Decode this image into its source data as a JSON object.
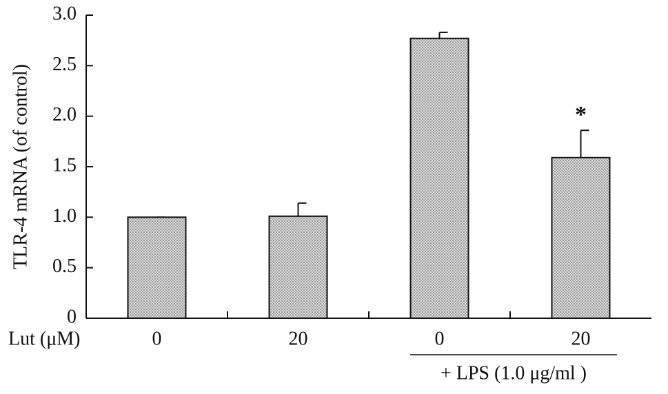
{
  "chart_data": {
    "type": "bar",
    "ylabel": "TLR-4 mRNA (of control)",
    "xlabel": "Lut (μM)",
    "categories": [
      "0",
      "20",
      "0",
      "20"
    ],
    "values": [
      1.0,
      1.01,
      2.77,
      1.59
    ],
    "errors": [
      0,
      0.13,
      0.06,
      0.27
    ],
    "color": "#d8d8d8",
    "ylim": [
      0,
      3.0
    ],
    "yticks": [
      0,
      0.5,
      {
        "value": 1.0,
        "label": "1.0"
      },
      1.5,
      {
        "value": 2.0,
        "label": "2.0"
      },
      2.5,
      {
        "value": 3.0,
        "label": "3.0"
      }
    ],
    "annotation": "*",
    "group_label": "+ LPS (1.0 μg/ml )",
    "grid": false
  }
}
